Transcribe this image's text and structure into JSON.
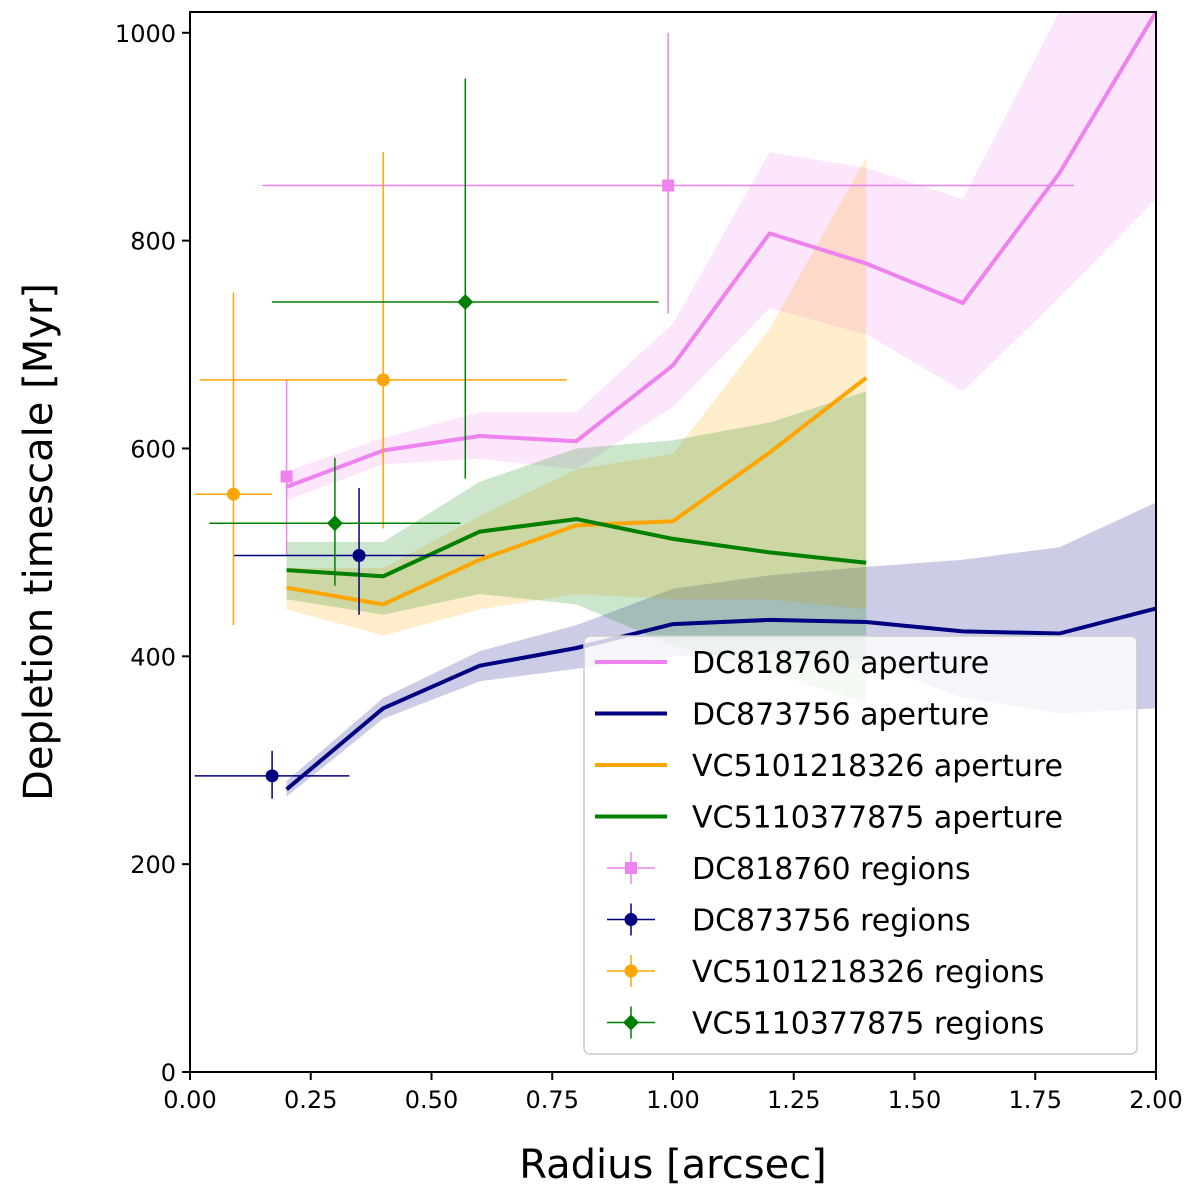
{
  "chart_data": {
    "type": "line",
    "title": "",
    "xlabel": "Radius [arcsec]",
    "ylabel": "Depletion timescale [Myr]",
    "xlim": [
      0.0,
      2.0
    ],
    "ylim": [
      0,
      1020
    ],
    "x_ticks": [
      0.0,
      0.25,
      0.5,
      0.75,
      1.0,
      1.25,
      1.5,
      1.75,
      2.0
    ],
    "x_tick_labels": [
      "0.00",
      "0.25",
      "0.50",
      "0.75",
      "1.00",
      "1.25",
      "1.50",
      "1.75",
      "2.00"
    ],
    "y_ticks": [
      0,
      200,
      400,
      600,
      800,
      1000
    ],
    "y_tick_labels": [
      "0",
      "200",
      "400",
      "600",
      "800",
      "1000"
    ],
    "grid": false,
    "legend_position": "lower-right",
    "series": [
      {
        "name": "DC818760 aperture",
        "kind": "line",
        "color": "#ee82ee",
        "x": [
          0.2,
          0.4,
          0.6,
          0.8,
          1.0,
          1.2,
          1.4,
          1.6,
          1.8,
          2.0
        ],
        "y": [
          563,
          598,
          612,
          607,
          680,
          807,
          778,
          740,
          865,
          1020
        ],
        "lower": [
          550,
          585,
          590,
          580,
          640,
          735,
          710,
          655,
          745,
          840
        ],
        "upper": [
          578,
          610,
          635,
          635,
          720,
          885,
          870,
          840,
          1020,
          1020
        ]
      },
      {
        "name": "DC873756 aperture",
        "kind": "line",
        "color": "#000080",
        "x": [
          0.2,
          0.4,
          0.6,
          0.8,
          1.0,
          1.2,
          1.4,
          1.6,
          1.8,
          2.0
        ],
        "y": [
          272,
          350,
          391,
          408,
          431,
          435,
          433,
          424,
          422,
          446
        ],
        "lower": [
          265,
          340,
          376,
          388,
          400,
          402,
          395,
          360,
          345,
          350
        ],
        "upper": [
          280,
          360,
          405,
          430,
          465,
          478,
          486,
          493,
          505,
          548
        ]
      },
      {
        "name": "VC5101218326 aperture",
        "kind": "line",
        "color": "#ffa500",
        "x": [
          0.2,
          0.4,
          0.6,
          0.8,
          1.0,
          1.2,
          1.4
        ],
        "y": [
          466,
          450,
          493,
          526,
          530,
          596,
          668
        ],
        "lower": [
          445,
          420,
          445,
          460,
          455,
          455,
          445
        ],
        "upper": [
          485,
          485,
          535,
          580,
          595,
          715,
          880
        ]
      },
      {
        "name": "VC5110377875 aperture",
        "kind": "line",
        "color": "#008000",
        "x": [
          0.2,
          0.4,
          0.6,
          0.8,
          1.0,
          1.2,
          1.4
        ],
        "y": [
          483,
          477,
          520,
          532,
          513,
          500,
          490
        ],
        "lower": [
          455,
          440,
          460,
          450,
          410,
          385,
          355
        ],
        "upper": [
          510,
          510,
          568,
          600,
          608,
          625,
          655
        ]
      },
      {
        "name": "DC818760 regions",
        "kind": "errorbar",
        "marker": "square",
        "color": "#ee82ee",
        "points": [
          {
            "x": 0.2,
            "y": 573,
            "xerr": 0.0,
            "yerr_low": 75,
            "yerr_high": 93
          },
          {
            "x": 0.99,
            "y": 853,
            "xerr": 0.84,
            "yerr_low": 123,
            "yerr_high": 147
          }
        ]
      },
      {
        "name": "DC873756 regions",
        "kind": "errorbar",
        "marker": "circle",
        "color": "#000080",
        "points": [
          {
            "x": 0.17,
            "y": 285,
            "xerr": 0.16,
            "yerr_low": 22,
            "yerr_high": 24
          },
          {
            "x": 0.35,
            "y": 497,
            "xerr": 0.26,
            "yerr_low": 57,
            "yerr_high": 65
          }
        ]
      },
      {
        "name": "VC5101218326 regions",
        "kind": "errorbar",
        "marker": "circle",
        "color": "#ffa500",
        "points": [
          {
            "x": 0.09,
            "y": 556,
            "xerr": 0.08,
            "yerr_low": 126,
            "yerr_high": 194
          },
          {
            "x": 0.4,
            "y": 666,
            "xerr": 0.38,
            "yerr_low": 143,
            "yerr_high": 219
          }
        ]
      },
      {
        "name": "VC5110377875 regions",
        "kind": "errorbar",
        "marker": "diamond",
        "color": "#008000",
        "points": [
          {
            "x": 0.3,
            "y": 528,
            "xerr": 0.26,
            "yerr_low": 60,
            "yerr_high": 63
          },
          {
            "x": 0.57,
            "y": 741,
            "xerr": 0.4,
            "yerr_low": 170,
            "yerr_high": 215
          }
        ]
      }
    ]
  }
}
